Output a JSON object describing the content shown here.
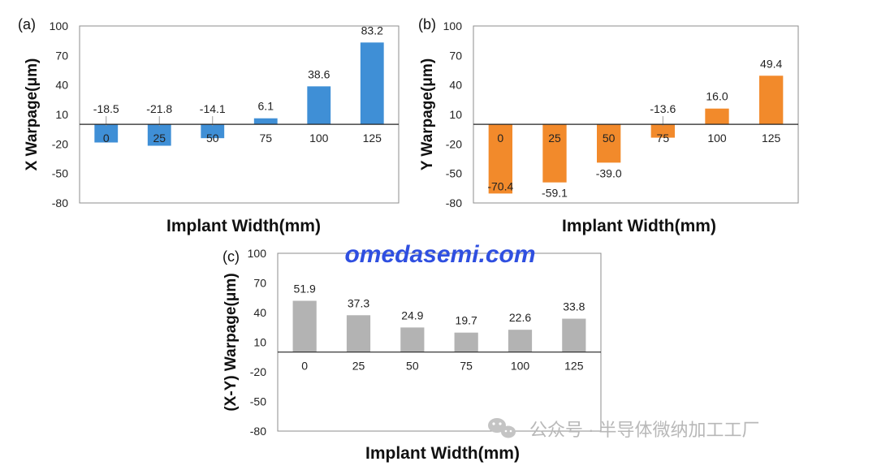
{
  "watermark": {
    "site": "omedasemi.com",
    "account": "公众号 · 半导体微纳加工工厂",
    "icon": "wechat-icon"
  },
  "chart_data": [
    {
      "type": "bar",
      "panel_label": "(a)",
      "ylabel": "X Warpage(μm)",
      "xlabel": "Implant Width(mm)",
      "categories": [
        "0",
        "25",
        "50",
        "75",
        "100",
        "125"
      ],
      "values": [
        -18.5,
        -21.8,
        -14.1,
        6.1,
        38.6,
        83.2
      ],
      "data_labels": [
        "-18.5",
        "-21.8",
        "-14.1",
        "6.1",
        "38.6",
        "83.2"
      ],
      "yticks": [
        100,
        70,
        40,
        10,
        -20,
        -50,
        -80
      ],
      "ylim": [
        -80,
        100
      ],
      "color": "#3f8fd6",
      "grid": false,
      "legend": "none"
    },
    {
      "type": "bar",
      "panel_label": "(b)",
      "ylabel": "Y Warpage(μm)",
      "xlabel": "Implant Width(mm)",
      "categories": [
        "0",
        "25",
        "50",
        "75",
        "100",
        "125"
      ],
      "values": [
        -70.4,
        -59.1,
        -39.0,
        -13.6,
        16.0,
        49.4
      ],
      "data_labels": [
        "-70.4",
        "-59.1",
        "-39.0",
        "-13.6",
        "16.0",
        "49.4"
      ],
      "yticks": [
        100,
        70,
        40,
        10,
        -20,
        -50,
        -80
      ],
      "ylim": [
        -80,
        100
      ],
      "color": "#f28a2b",
      "grid": false,
      "legend": "none"
    },
    {
      "type": "bar",
      "panel_label": "(c)",
      "ylabel": "(X-Y) Warpage(μm)",
      "xlabel": "Implant Width(mm)",
      "categories": [
        "0",
        "25",
        "50",
        "75",
        "100",
        "125"
      ],
      "values": [
        51.9,
        37.3,
        24.9,
        19.7,
        22.6,
        33.8
      ],
      "data_labels": [
        "51.9",
        "37.3",
        "24.9",
        "19.7",
        "22.6",
        "33.8"
      ],
      "yticks": [
        100,
        70,
        40,
        10,
        -20,
        -50,
        -80
      ],
      "ylim": [
        -80,
        100
      ],
      "color": "#b3b3b3",
      "grid": false,
      "legend": "none"
    }
  ]
}
